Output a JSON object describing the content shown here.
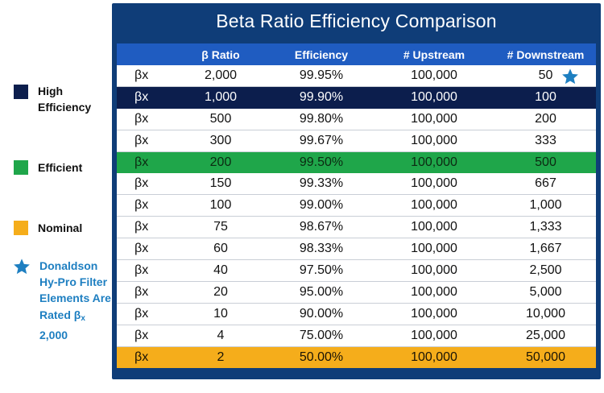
{
  "colors": {
    "high_efficiency": "#0c1e4d",
    "efficient": "#1fa64a",
    "nominal": "#f5ad1b",
    "header": "#1f5cc1",
    "frame": "#0f3d78",
    "note_text": "#1e7fc1",
    "star": "#1e7fc1"
  },
  "legend": {
    "items": [
      {
        "label": "High Efficiency",
        "color": "#0c1e4d"
      },
      {
        "label": "Efficient",
        "color": "#1fa64a"
      },
      {
        "label": "Nominal",
        "color": "#f5ad1b"
      }
    ],
    "note": {
      "icon": "star-icon",
      "text": "Donaldson Hy-Pro Filter Elements Are Rated",
      "beta_symbol": "β",
      "beta_subscript": "x",
      "rating": "2,000"
    }
  },
  "table": {
    "title": "Beta Ratio Efficiency Comparison",
    "headers": [
      "",
      "β Ratio",
      "Efficiency",
      "# Upstream",
      "# Downstream"
    ],
    "rows": [
      {
        "cells": [
          "βx",
          "2,000",
          "99.95%",
          "100,000",
          "50"
        ],
        "highlight": "none",
        "star": true
      },
      {
        "cells": [
          "βx",
          "1,000",
          "99.90%",
          "100,000",
          "100"
        ],
        "highlight": "high"
      },
      {
        "cells": [
          "βx",
          "500",
          "99.80%",
          "100,000",
          "200"
        ],
        "highlight": "none"
      },
      {
        "cells": [
          "βx",
          "300",
          "99.67%",
          "100,000",
          "333"
        ],
        "highlight": "none"
      },
      {
        "cells": [
          "βx",
          "200",
          "99.50%",
          "100,000",
          "500"
        ],
        "highlight": "efficient"
      },
      {
        "cells": [
          "βx",
          "150",
          "99.33%",
          "100,000",
          "667"
        ],
        "highlight": "none"
      },
      {
        "cells": [
          "βx",
          "100",
          "99.00%",
          "100,000",
          "1,000"
        ],
        "highlight": "none"
      },
      {
        "cells": [
          "βx",
          "75",
          "98.67%",
          "100,000",
          "1,333"
        ],
        "highlight": "none"
      },
      {
        "cells": [
          "βx",
          "60",
          "98.33%",
          "100,000",
          "1,667"
        ],
        "highlight": "none"
      },
      {
        "cells": [
          "βx",
          "40",
          "97.50%",
          "100,000",
          "2,500"
        ],
        "highlight": "none"
      },
      {
        "cells": [
          "βx",
          "20",
          "95.00%",
          "100,000",
          "5,000"
        ],
        "highlight": "none"
      },
      {
        "cells": [
          "βx",
          "10",
          "90.00%",
          "100,000",
          "10,000"
        ],
        "highlight": "none"
      },
      {
        "cells": [
          "βx",
          "4",
          "75.00%",
          "100,000",
          "25,000"
        ],
        "highlight": "none"
      },
      {
        "cells": [
          "βx",
          "2",
          "50.00%",
          "100,000",
          "50,000"
        ],
        "highlight": "nominal"
      }
    ]
  }
}
